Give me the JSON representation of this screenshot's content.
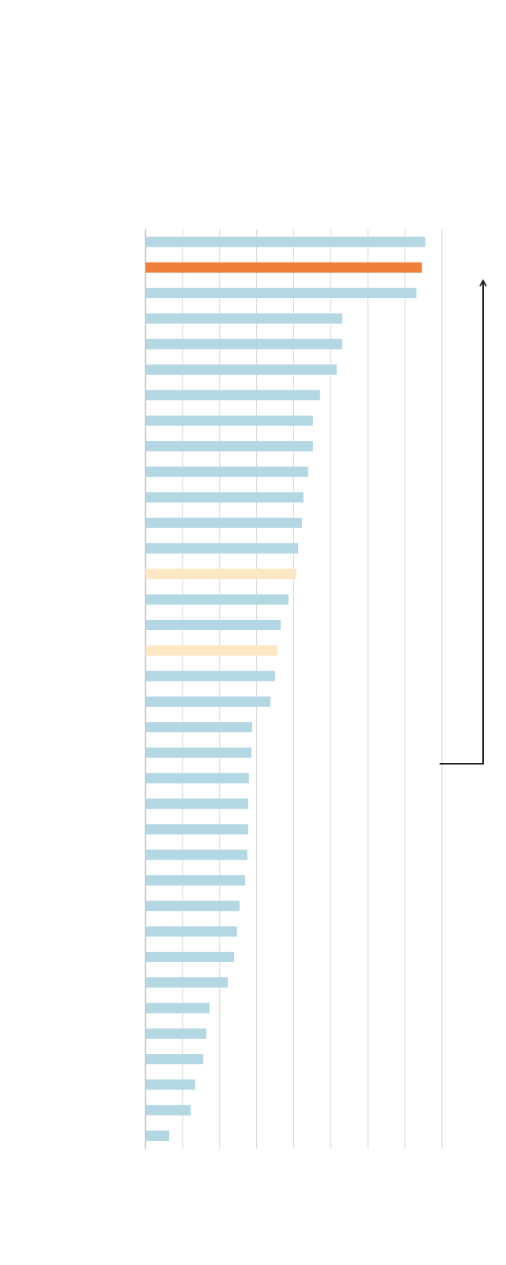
{
  "chart_data": {
    "type": "barh",
    "values": [
      7.55,
      7.46,
      7.31,
      5.31,
      5.31,
      5.16,
      4.71,
      4.52,
      4.52,
      4.39,
      4.26,
      4.22,
      4.12,
      4.07,
      3.86,
      3.65,
      3.56,
      3.5,
      3.37,
      2.88,
      2.86,
      2.79,
      2.77,
      2.77,
      2.75,
      2.69,
      2.54,
      2.47,
      2.39,
      2.22,
      1.73,
      1.64,
      1.56,
      1.34,
      1.22,
      0.64
    ],
    "colors": [
      "#b3d7e3",
      "#f07f3c",
      "#b3d7e3",
      "#b3d7e3",
      "#b3d7e3",
      "#b3d7e3",
      "#b3d7e3",
      "#b3d7e3",
      "#b3d7e3",
      "#b3d7e3",
      "#b3d7e3",
      "#b3d7e3",
      "#b3d7e3",
      "#fde7c4",
      "#b3d7e3",
      "#b3d7e3",
      "#fde7c4",
      "#b3d7e3",
      "#b3d7e3",
      "#b3d7e3",
      "#b3d7e3",
      "#b3d7e3",
      "#b3d7e3",
      "#b3d7e3",
      "#b3d7e3",
      "#b3d7e3",
      "#b3d7e3",
      "#b3d7e3",
      "#b3d7e3",
      "#b3d7e3",
      "#b3d7e3",
      "#b3d7e3",
      "#b3d7e3",
      "#b3d7e3",
      "#b3d7e3",
      "#b3d7e3"
    ],
    "xlim": [
      0,
      8
    ],
    "xticks": [
      0,
      1,
      2,
      3,
      4,
      5,
      6,
      7,
      8
    ],
    "grid": true
  }
}
